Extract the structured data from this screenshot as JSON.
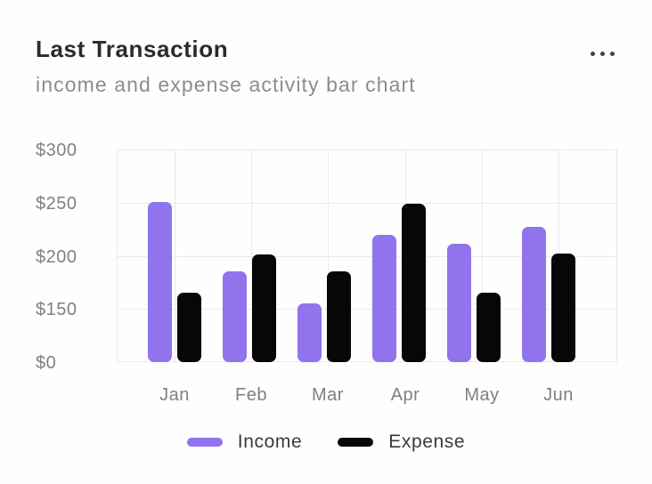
{
  "header": {
    "title": "Last Transaction",
    "subtitle": "income and expense activity bar chart",
    "menu_icon": "ellipsis-icon"
  },
  "chart_data": {
    "type": "bar",
    "title": "Last Transaction",
    "subtitle": "income and expense activity bar chart",
    "categories": [
      "Jan",
      "Feb",
      "Mar",
      "Apr",
      "May",
      "Jun"
    ],
    "series": [
      {
        "name": "Income",
        "color": "#9173ee",
        "values": [
          251,
          185,
          155,
          220,
          211,
          227
        ]
      },
      {
        "name": "Expense",
        "color": "#070707",
        "values": [
          165,
          201,
          185,
          249,
          165,
          202
        ]
      }
    ],
    "y_axis": {
      "tick_values": [
        0,
        150,
        200,
        250,
        300
      ],
      "tick_labels": [
        "$0",
        "$150",
        "$200",
        "$250",
        "$300"
      ],
      "ticks_equally_spaced": true
    },
    "grid": true,
    "legend_position": "bottom",
    "colors": {
      "income": "#9173ee",
      "expense": "#070707",
      "gridline": "#e9e9ef",
      "tick_text": "#7f7f85"
    }
  }
}
